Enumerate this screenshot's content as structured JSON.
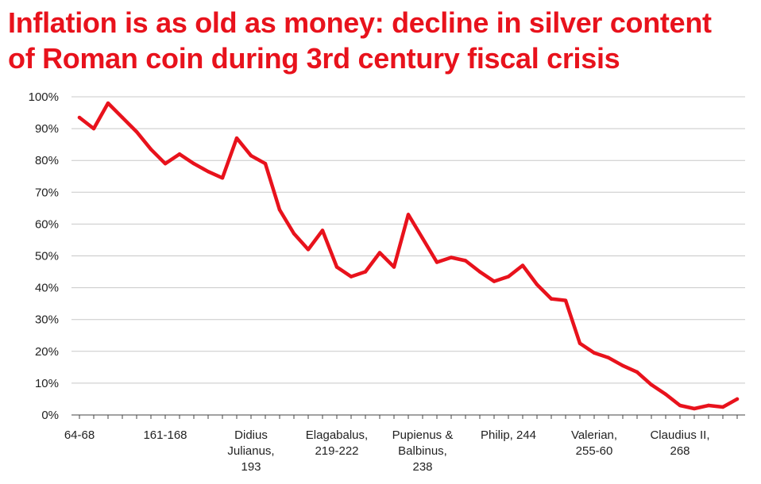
{
  "chart_data": {
    "type": "line",
    "title_lines": [
      "Inflation is as old as money: decline in silver content",
      "of Roman coin during 3rd century fiscal crisis"
    ],
    "xlabel": "",
    "ylabel": "",
    "ylim": [
      0,
      100
    ],
    "y_ticks": [
      "0%",
      "10%",
      "20%",
      "30%",
      "40%",
      "50%",
      "60%",
      "70%",
      "80%",
      "90%",
      "100%"
    ],
    "x_tick_labels": [
      {
        "index": 0,
        "lines": [
          "64-68"
        ]
      },
      {
        "index": 6,
        "lines": [
          "161-168"
        ]
      },
      {
        "index": 12,
        "lines": [
          "Didius",
          "Julianus,",
          "193"
        ]
      },
      {
        "index": 18,
        "lines": [
          "Elagabalus,",
          "219-222"
        ]
      },
      {
        "index": 24,
        "lines": [
          "Pupienus &",
          "Balbinus,",
          "238"
        ]
      },
      {
        "index": 30,
        "lines": [
          "Philip, 244"
        ]
      },
      {
        "index": 36,
        "lines": [
          "Valerian,",
          "255-60"
        ]
      },
      {
        "index": 42,
        "lines": [
          "Claudius II,",
          "268"
        ]
      }
    ],
    "series": [
      {
        "name": "Silver content",
        "color": "#e8121c",
        "values": [
          93.5,
          90,
          98,
          93.5,
          89,
          83.5,
          79,
          82,
          79,
          76.5,
          74.5,
          87,
          81.5,
          79,
          64.5,
          57,
          52,
          58,
          46.5,
          43.5,
          45,
          51,
          46.5,
          63,
          55.5,
          48,
          49.5,
          48.5,
          45,
          42,
          43.5,
          47,
          41,
          36.5,
          36,
          22.5,
          19.5,
          18,
          15.5,
          13.5,
          9.5,
          6.5,
          3,
          2,
          3,
          2.5,
          5
        ]
      }
    ]
  }
}
